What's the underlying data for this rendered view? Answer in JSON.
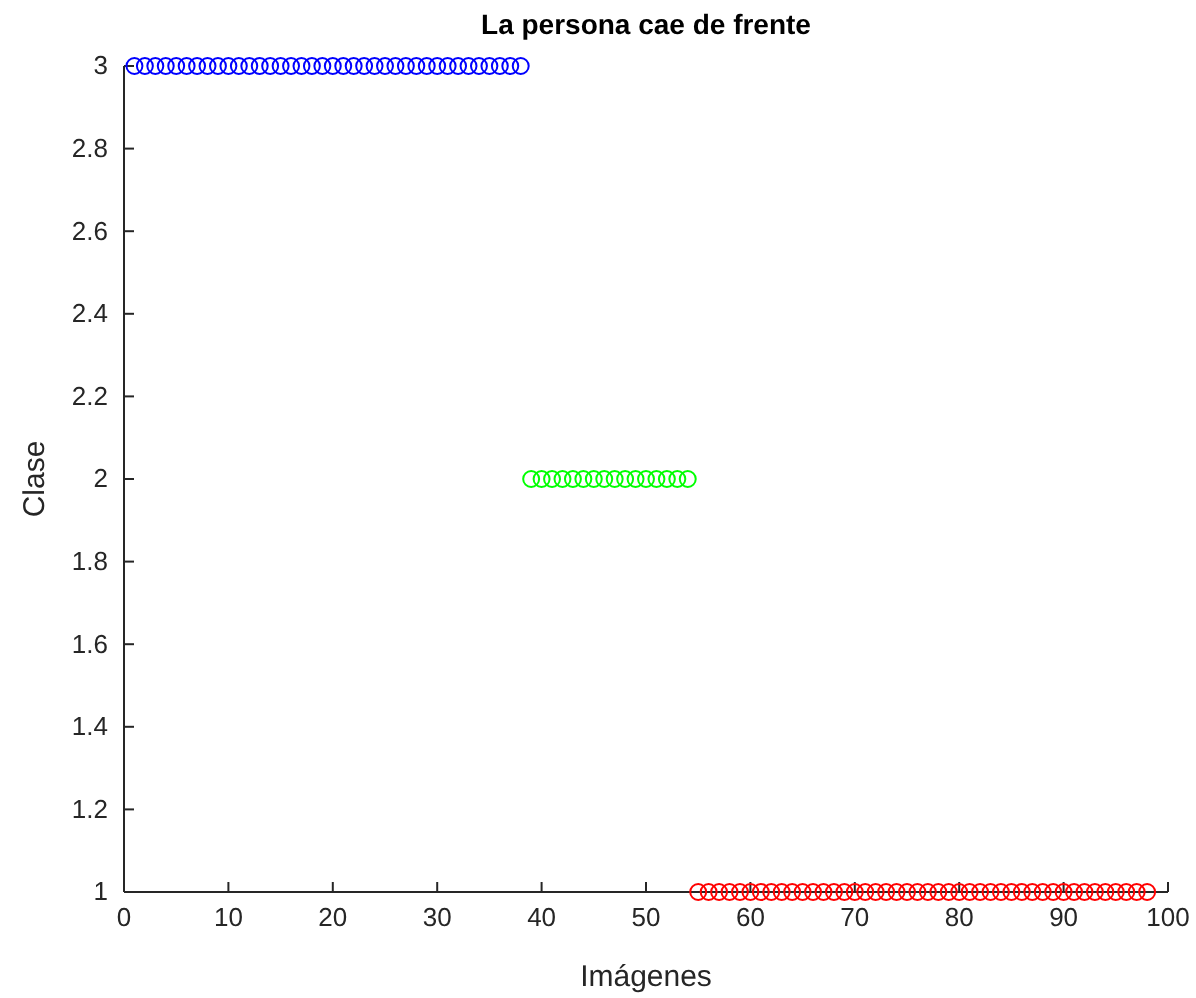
{
  "chart_data": {
    "type": "scatter",
    "title": "La persona cae de frente",
    "xlabel": "Imágenes",
    "ylabel": "Clase",
    "xlim": [
      0,
      100
    ],
    "xticks": [
      0,
      10,
      20,
      30,
      40,
      50,
      60,
      70,
      80,
      90,
      100
    ],
    "ylim": [
      1,
      3
    ],
    "yticks": [
      1,
      1.2,
      1.4,
      1.6,
      1.8,
      2,
      2.2,
      2.4,
      2.6,
      2.8,
      3
    ],
    "marker": "circle",
    "series": [
      {
        "color": "#0000ff",
        "x": [
          1,
          2,
          3,
          4,
          5,
          6,
          7,
          8,
          9,
          10,
          11,
          12,
          13,
          14,
          15,
          16,
          17,
          18,
          19,
          20,
          21,
          22,
          23,
          24,
          25,
          26,
          27,
          28,
          29,
          30,
          31,
          32,
          33,
          34,
          35,
          36,
          37,
          38
        ],
        "values": [
          3,
          3,
          3,
          3,
          3,
          3,
          3,
          3,
          3,
          3,
          3,
          3,
          3,
          3,
          3,
          3,
          3,
          3,
          3,
          3,
          3,
          3,
          3,
          3,
          3,
          3,
          3,
          3,
          3,
          3,
          3,
          3,
          3,
          3,
          3,
          3,
          3,
          3
        ]
      },
      {
        "color": "#00ff00",
        "x": [
          39,
          40,
          41,
          42,
          43,
          44,
          45,
          46,
          47,
          48,
          49,
          50,
          51,
          52,
          53,
          54
        ],
        "values": [
          2,
          2,
          2,
          2,
          2,
          2,
          2,
          2,
          2,
          2,
          2,
          2,
          2,
          2,
          2,
          2
        ]
      },
      {
        "color": "#ff0000",
        "x": [
          55,
          56,
          57,
          58,
          59,
          60,
          61,
          62,
          63,
          64,
          65,
          66,
          67,
          68,
          69,
          70,
          71,
          72,
          73,
          74,
          75,
          76,
          77,
          78,
          79,
          80,
          81,
          82,
          83,
          84,
          85,
          86,
          87,
          88,
          89,
          90,
          91,
          92,
          93,
          94,
          95,
          96,
          97,
          98
        ],
        "values": [
          1,
          1,
          1,
          1,
          1,
          1,
          1,
          1,
          1,
          1,
          1,
          1,
          1,
          1,
          1,
          1,
          1,
          1,
          1,
          1,
          1,
          1,
          1,
          1,
          1,
          1,
          1,
          1,
          1,
          1,
          1,
          1,
          1,
          1,
          1,
          1,
          1,
          1,
          1,
          1,
          1,
          1,
          1,
          1
        ]
      }
    ]
  }
}
